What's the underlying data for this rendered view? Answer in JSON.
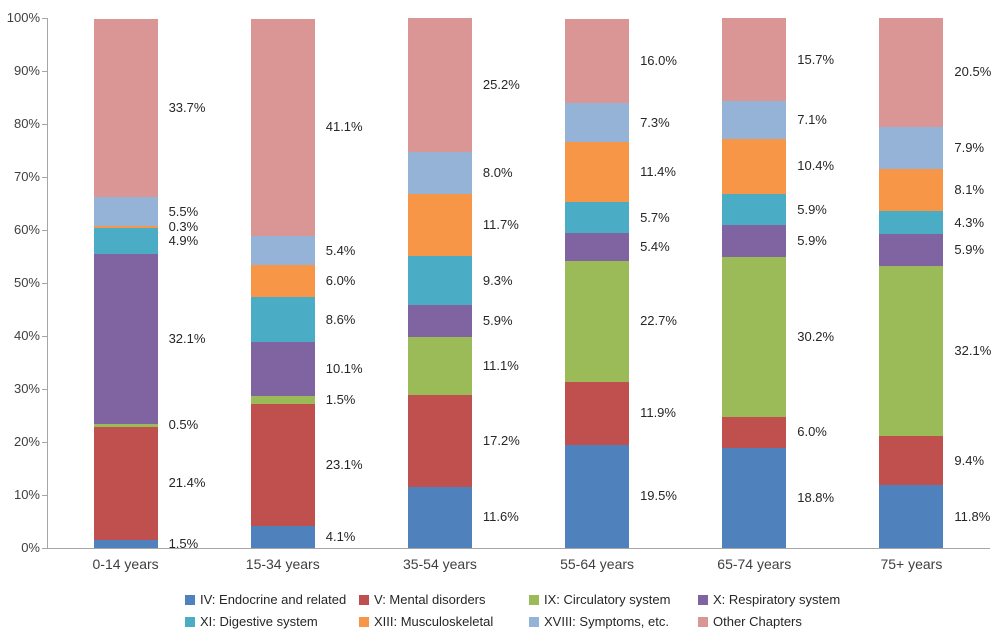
{
  "chart_data": {
    "type": "bar",
    "subtype": "stacked-100-percent",
    "title": "",
    "xlabel": "",
    "ylabel": "",
    "ylim": [
      0,
      100
    ],
    "grid": false,
    "legend_position": "bottom",
    "y_tick_values": [
      0,
      10,
      20,
      30,
      40,
      50,
      60,
      70,
      80,
      90,
      100
    ],
    "y_tick_labels": [
      "0%",
      "10%",
      "20%",
      "30%",
      "40%",
      "50%",
      "60%",
      "70%",
      "80%",
      "90%",
      "100%"
    ],
    "categories": [
      "0-14 years",
      "15-34 years",
      "35-54 years",
      "55-64 years",
      "65-74 years",
      "75+ years"
    ],
    "series": [
      {
        "name": "IV: Endocrine and related",
        "color": "#4F81BD",
        "values": [
          1.5,
          4.1,
          11.6,
          19.5,
          18.8,
          11.8
        ]
      },
      {
        "name": "V: Mental disorders",
        "color": "#C0504D",
        "values": [
          21.4,
          23.1,
          17.2,
          11.9,
          6.0,
          9.4
        ]
      },
      {
        "name": "IX: Circulatory system",
        "color": "#9BBB59",
        "values": [
          0.5,
          1.5,
          11.1,
          22.7,
          30.2,
          32.1
        ]
      },
      {
        "name": "X: Respiratory system",
        "color": "#8064A2",
        "values": [
          32.1,
          10.1,
          5.9,
          5.4,
          5.9,
          5.9
        ]
      },
      {
        "name": "XI: Digestive system",
        "color": "#4BACC6",
        "values": [
          4.9,
          8.6,
          9.3,
          5.7,
          5.9,
          4.3
        ]
      },
      {
        "name": "XIII: Musculoskeletal",
        "color": "#F79646",
        "values": [
          0.3,
          6.0,
          11.7,
          11.4,
          10.4,
          8.1
        ]
      },
      {
        "name": "XVIII: Symptoms, etc.",
        "color": "#95B3D7",
        "values": [
          5.5,
          5.4,
          8.0,
          7.3,
          7.1,
          7.9
        ]
      },
      {
        "name": "Other Chapters",
        "color": "#D99694",
        "values": [
          33.7,
          41.1,
          25.2,
          16.0,
          15.7,
          20.5
        ]
      }
    ],
    "data_label_format": "0.0%",
    "axis_color": "#A6A6A6"
  }
}
